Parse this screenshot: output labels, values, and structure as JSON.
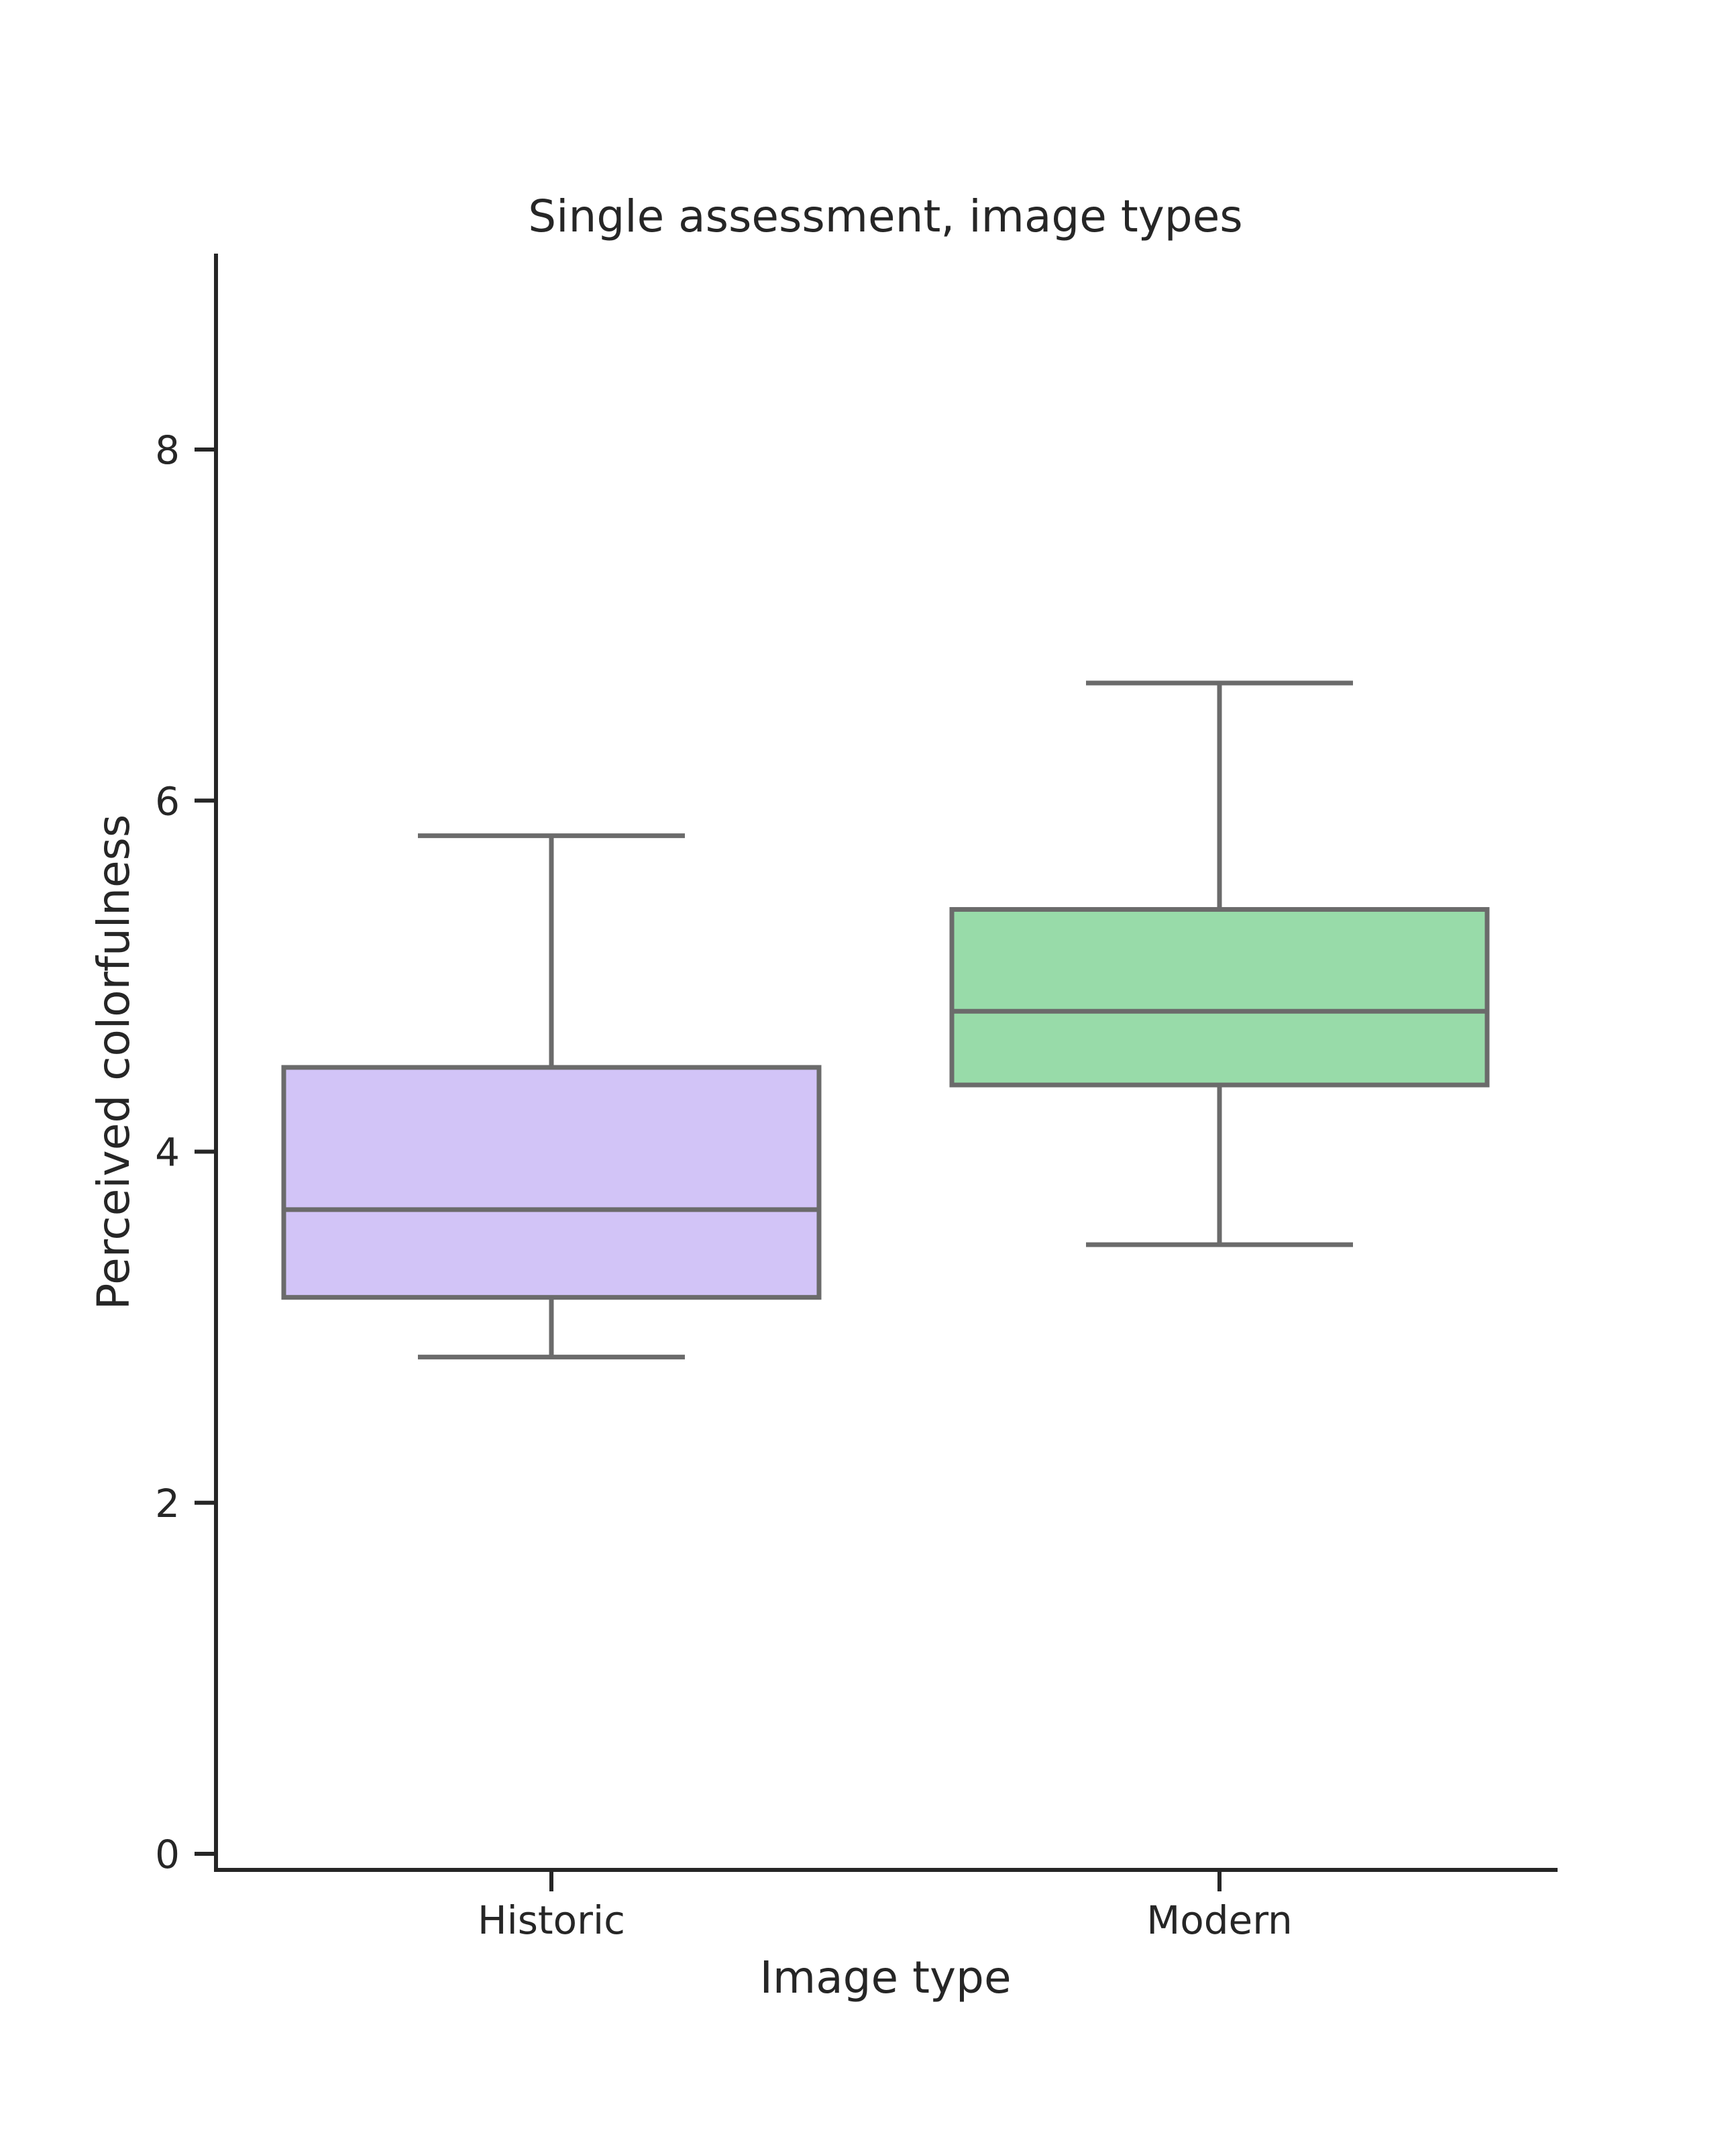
{
  "chart_data": {
    "type": "box",
    "title": "Single assessment, image types",
    "xlabel": "Image type",
    "ylabel": "Perceived colorfulness",
    "categories": [
      "Historic",
      "Modern"
    ],
    "boxes": [
      {
        "name": "Historic",
        "whisker_low": 2.83,
        "q1": 3.17,
        "median": 3.67,
        "q3": 4.48,
        "whisker_high": 5.8,
        "color": "#d2c4f7"
      },
      {
        "name": "Modern",
        "whisker_low": 3.47,
        "q1": 4.38,
        "median": 4.8,
        "q3": 5.38,
        "whisker_high": 6.67,
        "color": "#98dba9"
      }
    ],
    "yticks": [
      0,
      2,
      4,
      6,
      8
    ],
    "ytick_labels": [
      "0",
      "2",
      "4",
      "6",
      "8"
    ],
    "ylim": [
      -0.1,
      9.1
    ],
    "grid": false,
    "line_color": "#6b6b6b",
    "axis_color": "#262626"
  }
}
